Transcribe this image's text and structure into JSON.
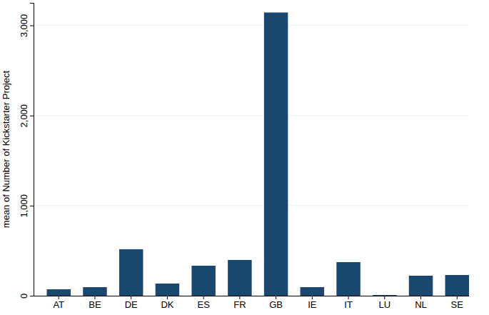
{
  "chart_data": {
    "type": "bar",
    "y_label": "mean of Number of Kickstarter Project",
    "categories": [
      "AT",
      "BE",
      "DE",
      "DK",
      "ES",
      "FR",
      "GB",
      "IE",
      "IT",
      "LU",
      "NL",
      "SE"
    ],
    "values": [
      71,
      95,
      516,
      135,
      333,
      397,
      3143,
      95,
      373,
      8,
      222,
      230
    ],
    "color": "#1a476f",
    "ylim": [
      0,
      3250
    ],
    "yticks": [
      0,
      {
        "value": 1000,
        "label": "1,000"
      },
      {
        "value": 2000,
        "label": "2,000"
      },
      {
        "value": 3000,
        "label": "3,000"
      }
    ],
    "grid": true
  }
}
